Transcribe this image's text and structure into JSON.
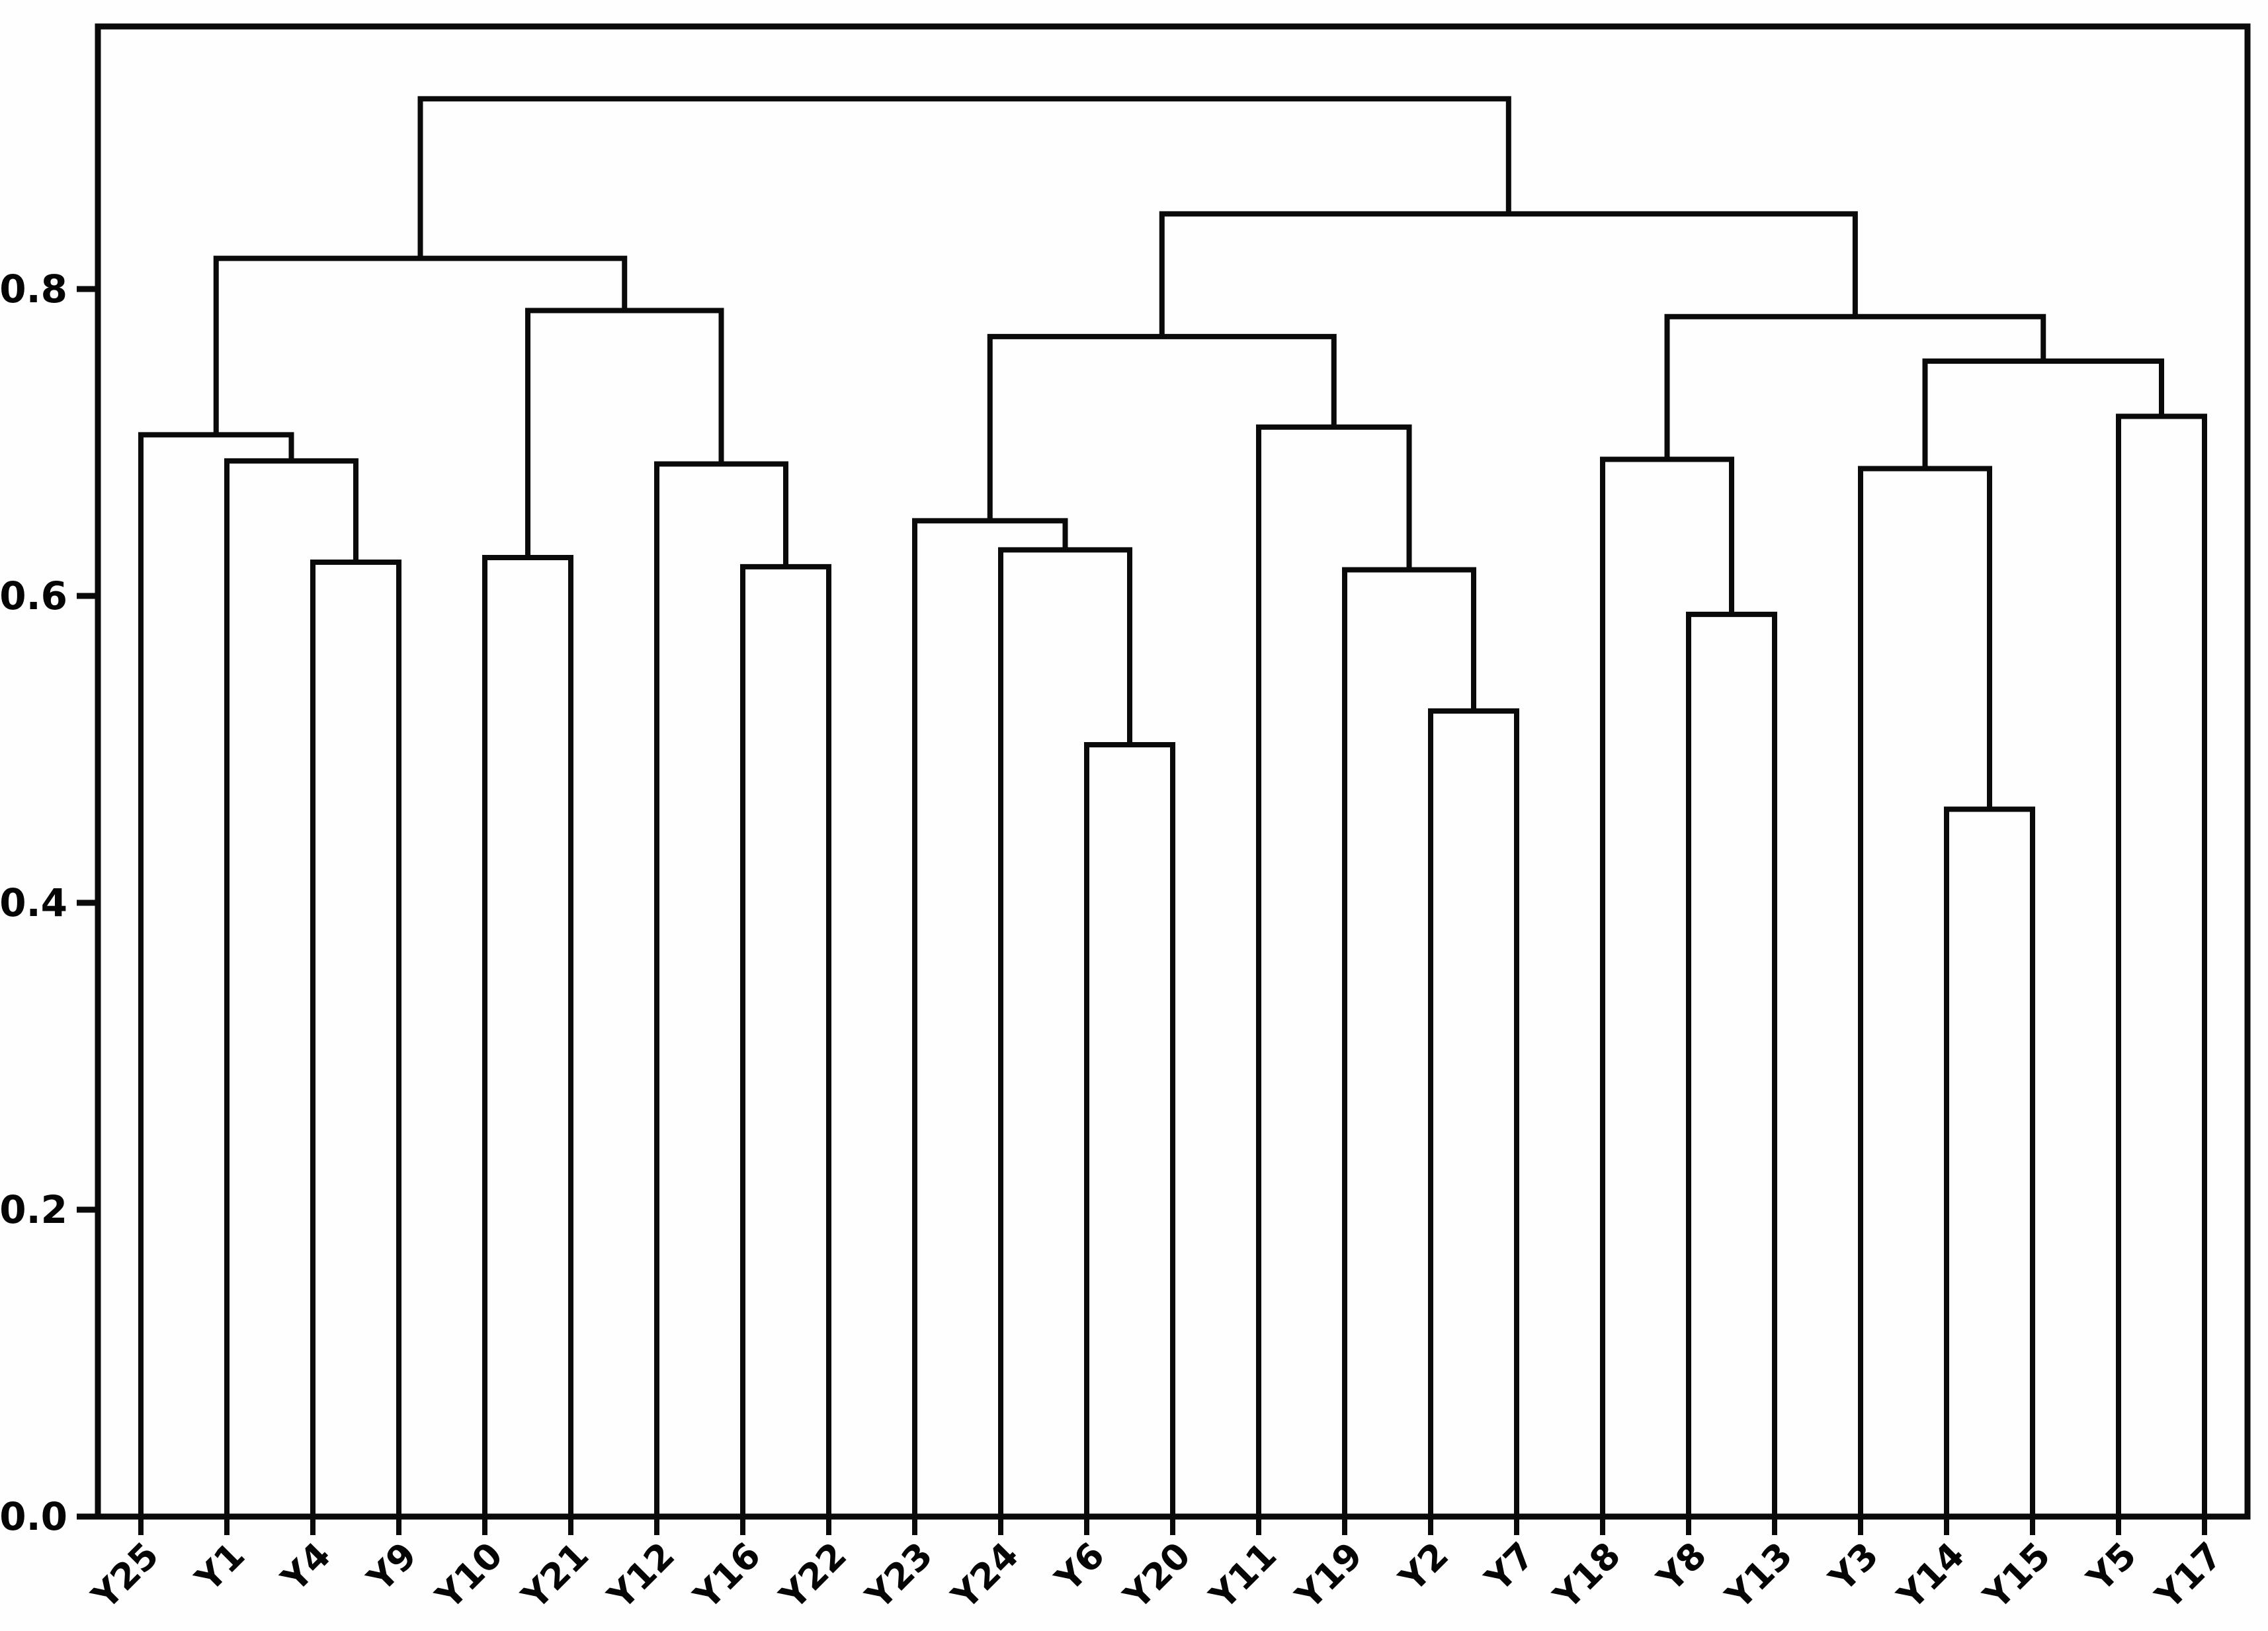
{
  "page": {
    "background_color": "#fefefe",
    "title": ""
  },
  "chart_data": {
    "type": "dendrogram",
    "title": "",
    "xlabel": "",
    "ylabel": "",
    "orientation": "top",
    "grid": false,
    "line_color": "#0a0a0a",
    "text_color": "#050505",
    "legend": null,
    "y_axis": {
      "tick_labels": [
        "0.0",
        "0.2",
        "0.4",
        "0.6",
        "0.8"
      ],
      "tick_values": [
        0.0,
        0.2,
        0.4,
        0.6,
        0.8
      ],
      "range": [
        0.0,
        0.971
      ]
    },
    "leaf_labels_in_order": [
      "Y25",
      "Y1",
      "Y4",
      "Y9",
      "Y10",
      "Y21",
      "Y12",
      "Y16",
      "Y22",
      "Y23",
      "Y24",
      "Y6",
      "Y20",
      "Y11",
      "Y19",
      "Y2",
      "Y7",
      "Y18",
      "Y8",
      "Y13",
      "Y3",
      "Y14",
      "Y15",
      "Y5",
      "Y17"
    ],
    "merges": [
      {
        "a": "Y4",
        "b": "Y9",
        "height": 0.622
      },
      {
        "a": "Y1",
        "b": "(Y4,Y9)",
        "height": 0.688
      },
      {
        "a": "Y25",
        "b": "(Y1,(Y4,Y9))",
        "height": 0.705
      },
      {
        "a": "Y10",
        "b": "Y21",
        "height": 0.625
      },
      {
        "a": "Y16",
        "b": "Y22",
        "height": 0.619
      },
      {
        "a": "Y12",
        "b": "(Y16,Y22)",
        "height": 0.686
      },
      {
        "a": "(Y10,Y21)",
        "b": "(Y12,(Y16,Y22))",
        "height": 0.786
      },
      {
        "a": "(Y25,Y1,Y4,Y9)",
        "b": "(Y10,Y21,Y12,Y16,Y22)",
        "height": 0.82
      },
      {
        "a": "Y6",
        "b": "Y20",
        "height": 0.503
      },
      {
        "a": "Y24",
        "b": "(Y6,Y20)",
        "height": 0.63
      },
      {
        "a": "Y23",
        "b": "(Y24,(Y6,Y20))",
        "height": 0.649
      },
      {
        "a": "Y2",
        "b": "Y7",
        "height": 0.525
      },
      {
        "a": "Y19",
        "b": "(Y2,Y7)",
        "height": 0.617
      },
      {
        "a": "Y11",
        "b": "(Y19,(Y2,Y7))",
        "height": 0.71
      },
      {
        "a": "(Y23,Y24,Y6,Y20)",
        "b": "(Y11,Y19,Y2,Y7)",
        "height": 0.769
      },
      {
        "a": "Y8",
        "b": "Y13",
        "height": 0.588
      },
      {
        "a": "Y18",
        "b": "(Y8,Y13)",
        "height": 0.689
      },
      {
        "a": "Y14",
        "b": "Y15",
        "height": 0.461
      },
      {
        "a": "Y3",
        "b": "(Y14,Y15)",
        "height": 0.683
      },
      {
        "a": "Y5",
        "b": "Y17",
        "height": 0.717
      },
      {
        "a": "(Y3,(Y14,Y15))",
        "b": "(Y5,Y17)",
        "height": 0.753
      },
      {
        "a": "(Y18,(Y8,Y13))",
        "b": "((Y3,Y14,Y15),(Y5,Y17))",
        "height": 0.782
      },
      {
        "a": "middle-cluster",
        "b": "right-cluster",
        "height": 0.849
      },
      {
        "a": "left-cluster",
        "b": "(middle+right)-cluster",
        "height": 0.924
      }
    ],
    "tree": {
      "h": 0.924,
      "c": [
        {
          "h": 0.82,
          "c": [
            {
              "h": 0.705,
              "c": [
                "Y25",
                {
                  "h": 0.688,
                  "c": [
                    "Y1",
                    {
                      "h": 0.622,
                      "c": [
                        "Y4",
                        "Y9"
                      ]
                    }
                  ]
                }
              ]
            },
            {
              "h": 0.786,
              "c": [
                {
                  "h": 0.625,
                  "c": [
                    "Y10",
                    "Y21"
                  ]
                },
                {
                  "h": 0.686,
                  "c": [
                    "Y12",
                    {
                      "h": 0.619,
                      "c": [
                        "Y16",
                        "Y22"
                      ]
                    }
                  ]
                }
              ]
            }
          ]
        },
        {
          "h": 0.849,
          "c": [
            {
              "h": 0.769,
              "c": [
                {
                  "h": 0.649,
                  "c": [
                    "Y23",
                    {
                      "h": 0.63,
                      "c": [
                        "Y24",
                        {
                          "h": 0.503,
                          "c": [
                            "Y6",
                            "Y20"
                          ]
                        }
                      ]
                    }
                  ]
                },
                {
                  "h": 0.71,
                  "c": [
                    "Y11",
                    {
                      "h": 0.617,
                      "c": [
                        "Y19",
                        {
                          "h": 0.525,
                          "c": [
                            "Y2",
                            "Y7"
                          ]
                        }
                      ]
                    }
                  ]
                }
              ]
            },
            {
              "h": 0.782,
              "c": [
                {
                  "h": 0.689,
                  "c": [
                    "Y18",
                    {
                      "h": 0.588,
                      "c": [
                        "Y8",
                        "Y13"
                      ]
                    }
                  ]
                },
                {
                  "h": 0.753,
                  "c": [
                    {
                      "h": 0.683,
                      "c": [
                        "Y3",
                        {
                          "h": 0.461,
                          "c": [
                            "Y14",
                            "Y15"
                          ]
                        }
                      ]
                    },
                    {
                      "h": 0.717,
                      "c": [
                        "Y5",
                        "Y17"
                      ]
                    }
                  ]
                }
              ]
            }
          ]
        }
      ]
    }
  }
}
